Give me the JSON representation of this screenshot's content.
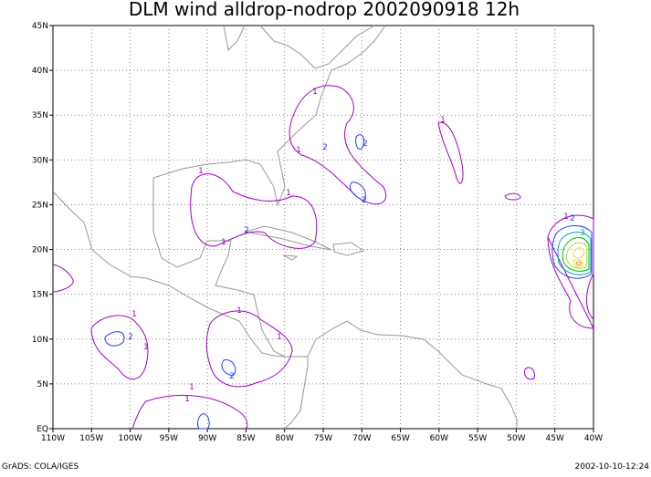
{
  "map": {
    "title": "DLM wind alldrop-nodrop 2002090918 12h",
    "x_labels": [
      "110W",
      "105W",
      "100W",
      "95W",
      "90W",
      "85W",
      "80W",
      "75W",
      "70W",
      "65W",
      "60W",
      "55W",
      "50W",
      "45W",
      "40W"
    ],
    "y_labels": [
      "EQ",
      "5N",
      "10N",
      "15N",
      "20N",
      "25N",
      "30N",
      "35N",
      "40N",
      "45N"
    ],
    "contour_labels": [
      "1",
      "2",
      "1",
      "2",
      "1",
      "1",
      "1",
      "2",
      "1",
      "1",
      "2",
      "1",
      "1",
      "2",
      "3",
      "1",
      "2",
      "1",
      "2",
      "1",
      "1"
    ]
  },
  "footer": {
    "left": "GrADS: COLA/IGES",
    "right": "2002-10-10-12:24"
  }
}
